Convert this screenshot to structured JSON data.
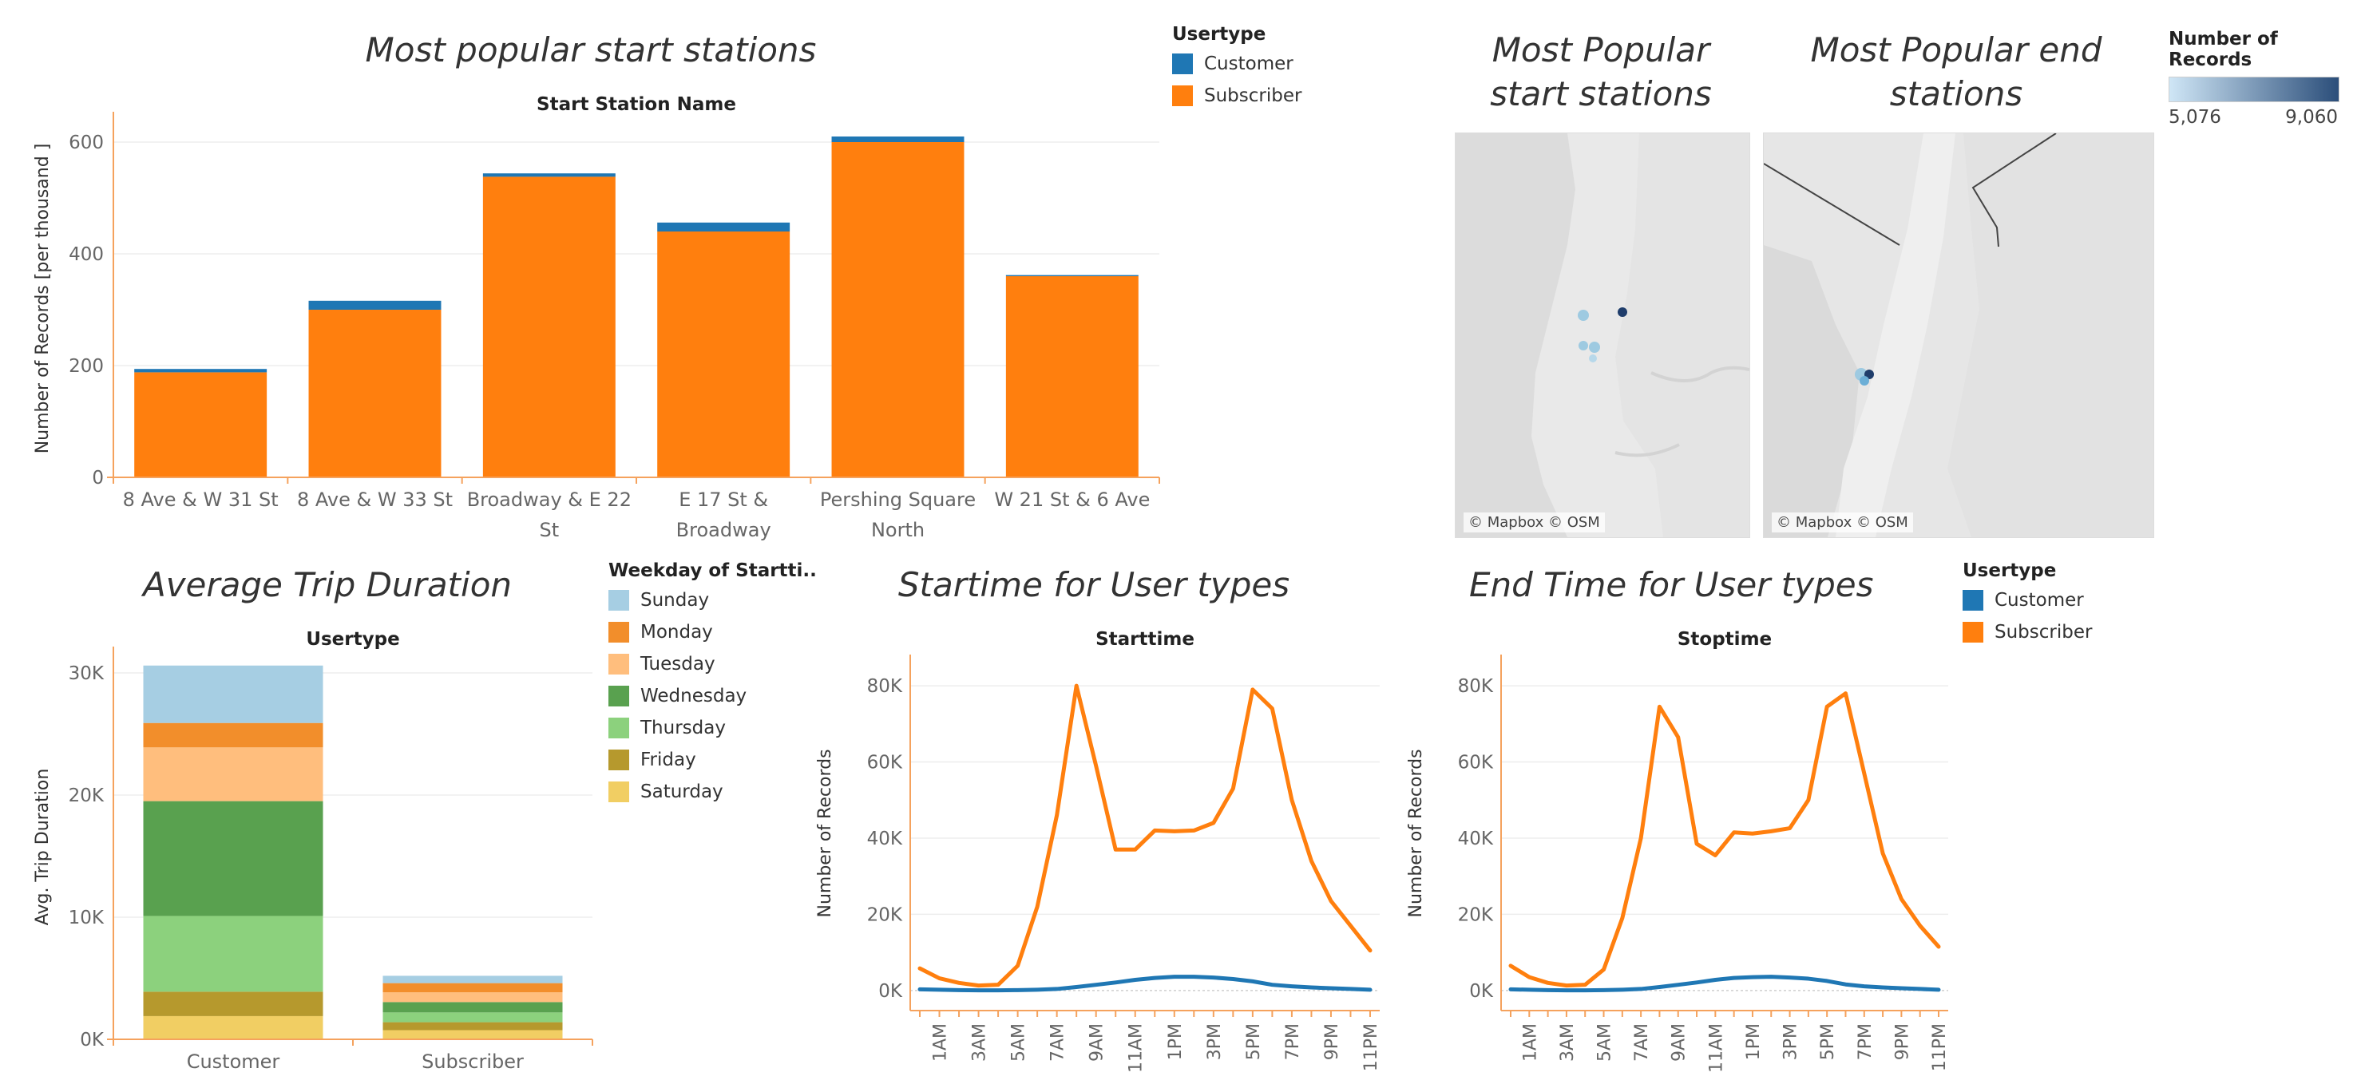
{
  "colors": {
    "customer": "#1f77b4",
    "subscriber": "#ff7f0e",
    "axis_orange": "#f5a25d",
    "grid": "#ededed",
    "sunday": "#a6cee3",
    "monday": "#f28e2b",
    "tuesday": "#ffbe7d",
    "wednesday": "#59a14f",
    "thursday": "#8cd17d",
    "friday": "#b6992d",
    "saturday": "#f1ce63"
  },
  "start_stations": {
    "title": "Most popular start stations",
    "header": "Start Station Name"
  },
  "usertype_legend": {
    "title": "Usertype",
    "items": [
      {
        "label": "Customer",
        "color": "#1f77b4"
      },
      {
        "label": "Subscriber",
        "color": "#ff7f0e"
      }
    ]
  },
  "maps": {
    "start_title_line1": "Most Popular",
    "start_title_line2": "start stations",
    "end_title_line1": "Most Popular end",
    "end_title_line2": "stations",
    "credit": "© Mapbox © OSM",
    "legend_title": "Number of Records",
    "legend_min": "5,076",
    "legend_max": "9,060"
  },
  "avg_trip": {
    "title": "Average Trip Duration",
    "header": "Usertype"
  },
  "weekday_legend": {
    "title": "Weekday of Startti..",
    "items": [
      {
        "label": "Sunday",
        "color": "#a6cee3"
      },
      {
        "label": "Monday",
        "color": "#f28e2b"
      },
      {
        "label": "Tuesday",
        "color": "#ffbe7d"
      },
      {
        "label": "Wednesday",
        "color": "#59a14f"
      },
      {
        "label": "Thursday",
        "color": "#8cd17d"
      },
      {
        "label": "Friday",
        "color": "#b6992d"
      },
      {
        "label": "Saturday",
        "color": "#f1ce63"
      }
    ]
  },
  "starttime": {
    "title": "Startime for User types",
    "header": "Starttime"
  },
  "endtime": {
    "title": "End Time for User types",
    "header": "Stoptime"
  },
  "usertype_legend2": {
    "title": "Usertype",
    "items": [
      {
        "label": "Customer",
        "color": "#1f77b4"
      },
      {
        "label": "Subscriber",
        "color": "#ff7f0e"
      }
    ]
  },
  "chart_data": [
    {
      "id": "start_stations",
      "type": "bar",
      "stacked": true,
      "title": "Most popular start stations",
      "header": "Start Station Name",
      "ylabel": "Number of Records  [per thousand ]",
      "ylim": [
        0,
        640
      ],
      "yticks": [
        0,
        200,
        400,
        600
      ],
      "ytick_labels": [
        "0",
        "200",
        "400",
        "600"
      ],
      "categories": [
        [
          "8 Ave & W 31 St"
        ],
        [
          "8 Ave & W 33 St"
        ],
        [
          "Broadway & E 22",
          "St"
        ],
        [
          "E 17 St &",
          "Broadway"
        ],
        [
          "Pershing Square",
          "North"
        ],
        [
          "W 21 St & 6 Ave"
        ]
      ],
      "series": [
        {
          "name": "Subscriber",
          "values": [
            188,
            300,
            538,
            440,
            600,
            360
          ]
        },
        {
          "name": "Customer",
          "values": [
            6,
            16,
            6,
            16,
            10,
            2
          ]
        }
      ],
      "grid": true
    },
    {
      "id": "avg_trip",
      "type": "bar",
      "stacked": true,
      "title": "Average Trip Duration",
      "header": "Usertype",
      "ylabel": "Avg. Trip Duration",
      "ylim": [
        0,
        31500
      ],
      "yticks": [
        0,
        10000,
        20000,
        30000
      ],
      "ytick_labels": [
        "0K",
        "10K",
        "20K",
        "30K"
      ],
      "categories": [
        "Customer",
        "Subscriber"
      ],
      "series": [
        {
          "name": "Saturday",
          "values": [
            1900,
            750
          ]
        },
        {
          "name": "Friday",
          "values": [
            2000,
            650
          ]
        },
        {
          "name": "Thursday",
          "values": [
            6200,
            800
          ]
        },
        {
          "name": "Wednesday",
          "values": [
            9400,
            850
          ]
        },
        {
          "name": "Tuesday",
          "values": [
            4400,
            800
          ]
        },
        {
          "name": "Monday",
          "values": [
            2000,
            750
          ]
        },
        {
          "name": "Sunday",
          "values": [
            4700,
            600
          ]
        }
      ],
      "grid": true
    },
    {
      "id": "starttime",
      "type": "line",
      "title": "Startime for User types",
      "header": "Starttime",
      "ylabel": "Number of Records",
      "ylim": [
        -1500,
        84000
      ],
      "yticks": [
        0,
        20000,
        40000,
        60000,
        80000
      ],
      "ytick_labels": [
        "0K",
        "20K",
        "40K",
        "60K",
        "80K"
      ],
      "x": [
        "12AM",
        "1AM",
        "2AM",
        "3AM",
        "4AM",
        "5AM",
        "6AM",
        "7AM",
        "8AM",
        "9AM",
        "10AM",
        "11AM",
        "12PM",
        "1PM",
        "2PM",
        "3PM",
        "4PM",
        "5PM",
        "6PM",
        "7PM",
        "8PM",
        "9PM",
        "10PM",
        "11PM"
      ],
      "xtick_labels": [
        "1AM",
        "3AM",
        "5AM",
        "7AM",
        "9AM",
        "11AM",
        "1PM",
        "3PM",
        "5PM",
        "7PM",
        "9PM",
        "11PM"
      ],
      "series": [
        {
          "name": "Subscriber",
          "values": [
            5800,
            3200,
            2000,
            1300,
            1500,
            6500,
            22000,
            46000,
            80000,
            59000,
            37000,
            37000,
            42000,
            41800,
            42000,
            44000,
            53000,
            79000,
            74000,
            50000,
            34000,
            23500,
            17000,
            10500
          ]
        },
        {
          "name": "Customer",
          "values": [
            300,
            200,
            100,
            50,
            50,
            100,
            200,
            400,
            900,
            1500,
            2100,
            2800,
            3300,
            3600,
            3600,
            3400,
            3000,
            2400,
            1500,
            1100,
            800,
            600,
            400,
            200
          ]
        }
      ],
      "grid": true
    },
    {
      "id": "endtime",
      "type": "line",
      "title": "End Time for User types",
      "header": "Stoptime",
      "ylabel": "Number of Records",
      "ylim": [
        -1500,
        84000
      ],
      "yticks": [
        0,
        20000,
        40000,
        60000,
        80000
      ],
      "ytick_labels": [
        "0K",
        "20K",
        "40K",
        "60K",
        "80K"
      ],
      "x": [
        "12AM",
        "1AM",
        "2AM",
        "3AM",
        "4AM",
        "5AM",
        "6AM",
        "7AM",
        "8AM",
        "9AM",
        "10AM",
        "11AM",
        "12PM",
        "1PM",
        "2PM",
        "3PM",
        "4PM",
        "5PM",
        "6PM",
        "7PM",
        "8PM",
        "9PM",
        "10PM",
        "11PM"
      ],
      "xtick_labels": [
        "1AM",
        "3AM",
        "5AM",
        "7AM",
        "9AM",
        "11AM",
        "1PM",
        "3PM",
        "5PM",
        "7PM",
        "9PM",
        "11PM"
      ],
      "series": [
        {
          "name": "Subscriber",
          "values": [
            6500,
            3500,
            2000,
            1300,
            1500,
            5500,
            19000,
            40000,
            74500,
            66500,
            38500,
            35500,
            41500,
            41200,
            41800,
            42600,
            50000,
            74500,
            78000,
            57000,
            36000,
            24000,
            17000,
            11500
          ]
        },
        {
          "name": "Customer",
          "values": [
            300,
            200,
            100,
            50,
            50,
            100,
            200,
            400,
            900,
            1500,
            2100,
            2800,
            3300,
            3500,
            3600,
            3400,
            3100,
            2500,
            1600,
            1100,
            800,
            600,
            400,
            200
          ]
        }
      ],
      "grid": true
    }
  ]
}
